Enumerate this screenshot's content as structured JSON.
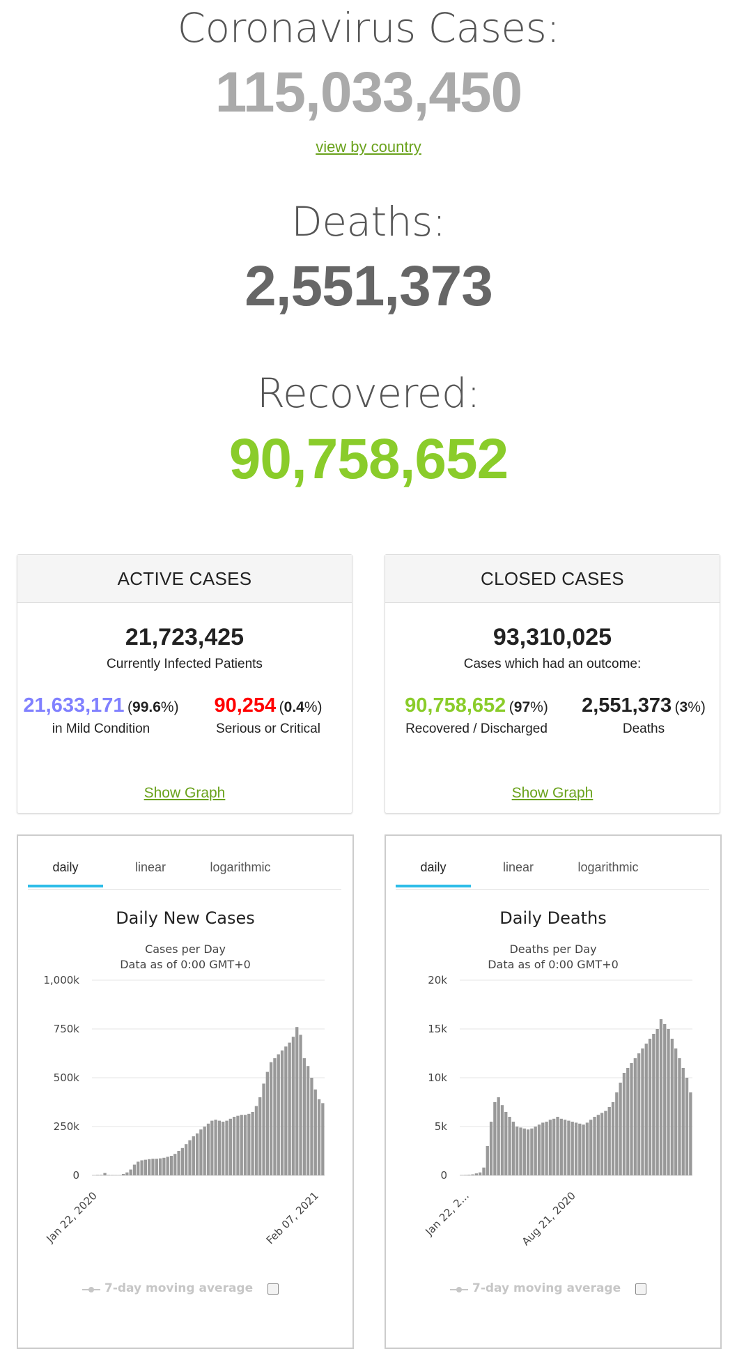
{
  "hero": {
    "cases_title": "Coronavirus Cases:",
    "cases_value": "115,033,450",
    "view_link": "view by country",
    "deaths_title": "Deaths:",
    "deaths_value": "2,551,373",
    "recovered_title": "Recovered:",
    "recovered_value": "90,758,652"
  },
  "colors": {
    "cases": "#aaaaaa",
    "deaths": "#666666",
    "recovered": "#8acc2a",
    "mild": "#8080ff",
    "serious": "#ff0000",
    "bars": "#999999",
    "tab_active": "#2dbde8",
    "link": "#6aa21c"
  },
  "active": {
    "header": "ACTIVE CASES",
    "total": "21,723,425",
    "total_label": "Currently Infected Patients",
    "mild_value": "21,633,171",
    "mild_pct": "99.6",
    "mild_label": "in Mild Condition",
    "serious_value": "90,254",
    "serious_pct": "0.4",
    "serious_label": "Serious or Critical",
    "show_graph": "Show Graph"
  },
  "closed": {
    "header": "CLOSED CASES",
    "total": "93,310,025",
    "total_label": "Cases which had an outcome:",
    "recovered_value": "90,758,652",
    "recovered_pct": "97",
    "recovered_label": "Recovered / Discharged",
    "deaths_value": "2,551,373",
    "deaths_pct": "3",
    "deaths_label": "Deaths",
    "show_graph": "Show Graph"
  },
  "tabs": [
    "daily",
    "linear",
    "logarithmic"
  ],
  "legend_label": "7-day moving average",
  "chart_data": [
    {
      "type": "bar",
      "title": "Daily New Cases",
      "subtitle": [
        "Cases per Day",
        "Data as of 0:00 GMT+0"
      ],
      "ylim": [
        0,
        1000000
      ],
      "yticks": [
        "0",
        "250k",
        "500k",
        "750k",
        "1,000k"
      ],
      "x_start": "Jan 22, 2020",
      "x_end": "Mar 01, 2021",
      "xtick_labels": [
        "Jan 22, 2020",
        "Feb 07, 2021"
      ],
      "legend": "7-day moving average",
      "values_by_week": [
        600,
        2200,
        2500,
        12000,
        2000,
        1500,
        1000,
        1000,
        7000,
        15000,
        30000,
        55000,
        70000,
        77000,
        80000,
        83000,
        85000,
        85000,
        87000,
        90000,
        95000,
        100000,
        110000,
        125000,
        140000,
        160000,
        180000,
        200000,
        215000,
        235000,
        250000,
        265000,
        280000,
        285000,
        280000,
        275000,
        280000,
        290000,
        300000,
        305000,
        310000,
        310000,
        315000,
        325000,
        355000,
        400000,
        470000,
        530000,
        580000,
        600000,
        620000,
        640000,
        660000,
        680000,
        710000,
        760000,
        720000,
        600000,
        560000,
        500000,
        440000,
        390000,
        370000
      ]
    },
    {
      "type": "bar",
      "title": "Daily Deaths",
      "subtitle": [
        "Deaths per Day",
        "Data as of 0:00 GMT+0"
      ],
      "ylim": [
        0,
        20000
      ],
      "yticks": [
        "0",
        "5k",
        "10k",
        "15k",
        "20k"
      ],
      "x_start": "Jan 22, 2020",
      "x_end": "Mar 01, 2021",
      "xtick_labels": [
        "Jan 22, 2...",
        "Aug 21, 2020"
      ],
      "legend": "7-day moving average",
      "values_by_week": [
        20,
        40,
        60,
        100,
        200,
        300,
        800,
        3000,
        5500,
        7500,
        8000,
        7200,
        6500,
        6000,
        5500,
        5000,
        4900,
        4800,
        4700,
        4800,
        5000,
        5200,
        5400,
        5500,
        5700,
        5800,
        6000,
        5800,
        5700,
        5600,
        5500,
        5400,
        5300,
        5200,
        5400,
        5700,
        6000,
        6200,
        6400,
        6600,
        7000,
        7500,
        8500,
        9500,
        10500,
        11000,
        11500,
        12000,
        12500,
        13000,
        13500,
        14000,
        14500,
        15000,
        16000,
        15500,
        15000,
        14000,
        13000,
        12000,
        11000,
        10000,
        8500
      ]
    }
  ]
}
